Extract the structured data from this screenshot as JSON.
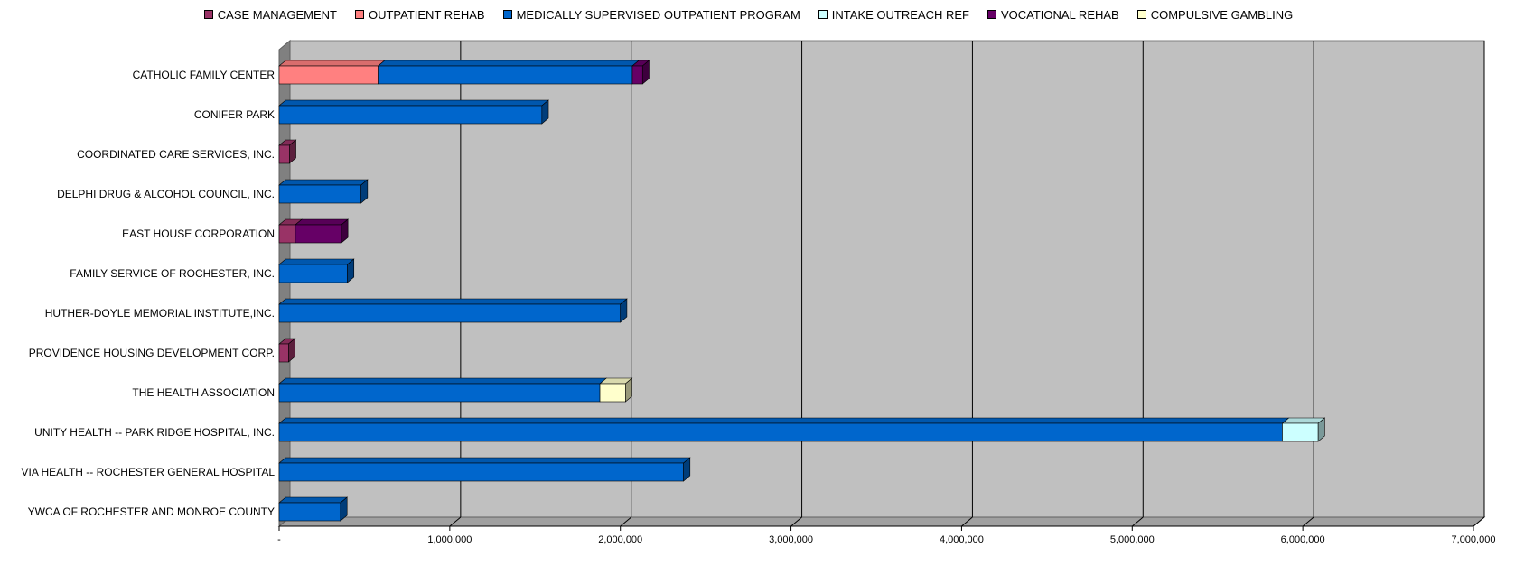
{
  "chart_data": {
    "type": "bar",
    "orientation": "horizontal",
    "stacked": true,
    "three_d": true,
    "legend_position": "top",
    "grid": true,
    "xlim": [
      0,
      7000000
    ],
    "x_ticks": [
      0,
      1000000,
      2000000,
      3000000,
      4000000,
      5000000,
      6000000,
      7000000
    ],
    "x_tick_labels": [
      "-",
      "1,000,000",
      "2,000,000",
      "3,000,000",
      "4,000,000",
      "5,000,000",
      "6,000,000",
      "7,000,000"
    ],
    "categories": [
      "CATHOLIC FAMILY CENTER",
      "CONIFER PARK",
      "COORDINATED CARE SERVICES, INC.",
      "DELPHI DRUG & ALCOHOL COUNCIL, INC.",
      "EAST HOUSE CORPORATION",
      "FAMILY SERVICE OF ROCHESTER, INC.",
      "HUTHER-DOYLE MEMORIAL INSTITUTE,INC.",
      "PROVIDENCE HOUSING DEVELOPMENT CORP.",
      "THE HEALTH ASSOCIATION",
      "UNITY HEALTH -- PARK RIDGE HOSPITAL, INC.",
      "VIA HEALTH -- ROCHESTER GENERAL HOSPITAL",
      "YWCA OF ROCHESTER AND MONROE COUNTY"
    ],
    "series": [
      {
        "name": "CASE MANAGEMENT",
        "color": "#993366",
        "values": [
          0,
          0,
          60000,
          0,
          95000,
          0,
          0,
          55000,
          0,
          0,
          0,
          0
        ]
      },
      {
        "name": "OUTPATIENT REHAB",
        "color": "#FF8080",
        "values": [
          580000,
          0,
          0,
          0,
          0,
          0,
          0,
          0,
          0,
          0,
          0,
          0
        ]
      },
      {
        "name": "MEDICALLY SUPERVISED OUTPATIENT PROGRAM",
        "color": "#0066CC",
        "values": [
          1490000,
          1540000,
          0,
          480000,
          0,
          400000,
          2000000,
          0,
          1880000,
          5880000,
          2370000,
          360000
        ]
      },
      {
        "name": "INTAKE OUTREACH REF",
        "color": "#CCFFFF",
        "values": [
          0,
          0,
          0,
          0,
          0,
          0,
          0,
          0,
          0,
          210000,
          0,
          0
        ]
      },
      {
        "name": "VOCATIONAL REHAB",
        "color": "#660066",
        "values": [
          60000,
          0,
          0,
          0,
          270000,
          0,
          0,
          0,
          0,
          0,
          0,
          0
        ]
      },
      {
        "name": "COMPULSIVE GAMBLING",
        "color": "#FFFFCC",
        "values": [
          0,
          0,
          0,
          0,
          0,
          0,
          0,
          0,
          150000,
          0,
          0,
          0
        ]
      }
    ]
  }
}
